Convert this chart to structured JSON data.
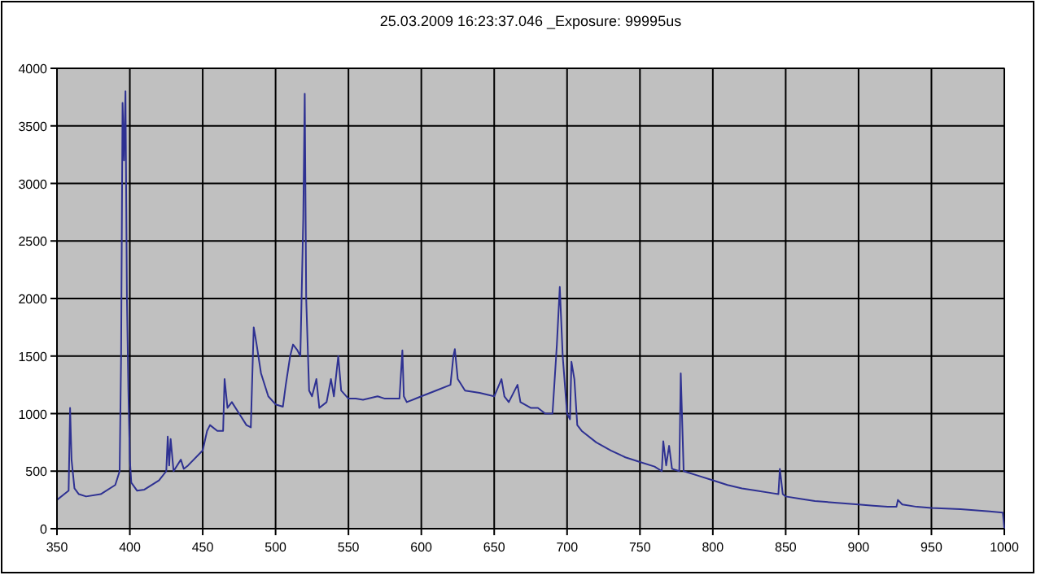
{
  "chart_data": {
    "type": "line",
    "title": "25.03.2009 16:23:37.046 _Exposure: 99995us",
    "x": [
      350,
      355,
      358,
      359,
      360,
      362,
      365,
      370,
      380,
      390,
      393,
      394,
      395,
      396,
      397,
      398,
      399,
      400,
      401,
      405,
      410,
      420,
      425,
      426,
      427,
      428,
      430,
      435,
      437,
      440,
      450,
      453,
      455,
      460,
      464,
      465,
      467,
      470,
      475,
      480,
      483,
      485,
      487,
      490,
      495,
      500,
      505,
      507,
      510,
      512,
      515,
      517,
      519,
      520,
      521,
      523,
      525,
      528,
      530,
      535,
      538,
      540,
      543,
      545,
      550,
      555,
      560,
      570,
      575,
      580,
      585,
      587,
      588,
      590,
      600,
      610,
      620,
      622,
      623,
      625,
      630,
      640,
      650,
      655,
      657,
      660,
      666,
      668,
      675,
      680,
      685,
      690,
      693,
      695,
      697,
      700,
      702,
      703,
      705,
      707,
      710,
      720,
      730,
      740,
      750,
      760,
      765,
      766,
      768,
      770,
      772,
      777,
      778,
      780,
      790,
      800,
      810,
      820,
      830,
      840,
      845,
      846,
      848,
      850,
      860,
      870,
      880,
      900,
      910,
      920,
      926,
      927,
      930,
      940,
      950,
      970,
      990,
      999,
      1000
    ],
    "series": [
      {
        "color": "#2e3192",
        "values": [
          250,
          300,
          330,
          1050,
          600,
          350,
          300,
          280,
          300,
          380,
          500,
          1500,
          3700,
          3200,
          3800,
          2000,
          1200,
          600,
          400,
          330,
          340,
          420,
          500,
          800,
          550,
          780,
          500,
          600,
          520,
          550,
          680,
          850,
          900,
          850,
          850,
          1300,
          1050,
          1100,
          1000,
          900,
          880,
          1750,
          1600,
          1350,
          1150,
          1080,
          1060,
          1250,
          1500,
          1600,
          1550,
          1500,
          2700,
          3780,
          2000,
          1200,
          1150,
          1300,
          1050,
          1100,
          1300,
          1150,
          1500,
          1200,
          1130,
          1130,
          1120,
          1150,
          1130,
          1130,
          1130,
          1550,
          1150,
          1100,
          1150,
          1200,
          1250,
          1500,
          1560,
          1300,
          1200,
          1180,
          1150,
          1300,
          1150,
          1100,
          1250,
          1100,
          1050,
          1050,
          1000,
          1000,
          1600,
          2100,
          1500,
          1000,
          950,
          1450,
          1300,
          900,
          850,
          750,
          680,
          620,
          580,
          540,
          500,
          760,
          550,
          720,
          520,
          500,
          1350,
          500,
          460,
          420,
          380,
          350,
          330,
          310,
          300,
          520,
          300,
          280,
          260,
          240,
          230,
          210,
          200,
          190,
          190,
          250,
          210,
          190,
          180,
          170,
          150,
          140,
          0
        ]
      }
    ],
    "xlim": [
      350,
      1000
    ],
    "xticks": [
      350,
      400,
      450,
      500,
      550,
      600,
      650,
      700,
      750,
      800,
      850,
      900,
      950,
      1000
    ],
    "ylim": [
      0,
      4000
    ],
    "yticks": [
      0,
      500,
      1000,
      1500,
      2000,
      2500,
      3000,
      3500,
      4000
    ],
    "grid": true,
    "marker": "none",
    "line_style": "solid"
  }
}
